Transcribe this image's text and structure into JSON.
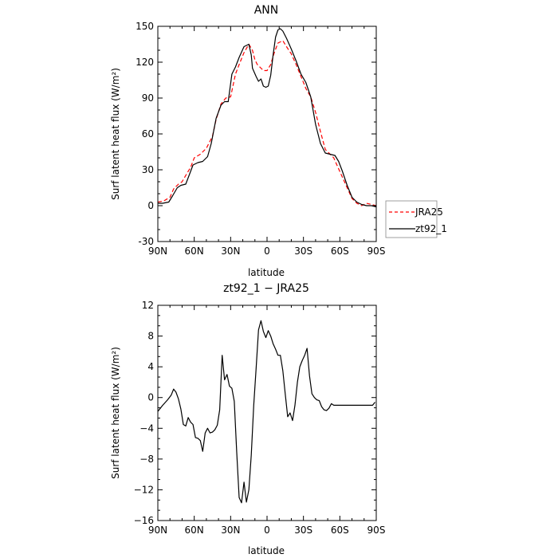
{
  "chart_data": [
    {
      "type": "line",
      "title": "ANN",
      "xlabel": "latitude",
      "ylabel": "Surf latent heat flux (W/m²)",
      "xlim": [
        90,
        -90
      ],
      "ylim": [
        -30,
        150
      ],
      "x_ticks": [
        90,
        60,
        30,
        0,
        -30,
        -60,
        -90
      ],
      "x_tick_labels": [
        "90N",
        "60N",
        "30N",
        "0",
        "30S",
        "60S",
        "90S"
      ],
      "y_ticks": [
        -30,
        0,
        30,
        60,
        90,
        120,
        150
      ],
      "y_tick_labels": [
        "-30",
        "0",
        "30",
        "60",
        "90",
        "120",
        "150"
      ],
      "grid": false,
      "legend_position": "outside-right",
      "series": [
        {
          "name": "JRA25",
          "color": "#ff0000",
          "dash": "dashed",
          "x": [
            90,
            85,
            80,
            77,
            73,
            70,
            66,
            63,
            60,
            55,
            50,
            45,
            42,
            38,
            34,
            30,
            26,
            23,
            19,
            15,
            12,
            10,
            8,
            5,
            3,
            0,
            -3,
            -6,
            -9,
            -13,
            -16,
            -20,
            -24,
            -28,
            -32,
            -36,
            -40,
            -44,
            -48,
            -52,
            -55,
            -58,
            -62,
            -66,
            -70,
            -74,
            -78,
            -82,
            -86,
            -90
          ],
          "y": [
            3,
            4,
            7,
            14,
            18,
            20,
            27,
            32,
            40,
            43,
            48,
            58,
            72,
            85,
            90,
            91,
            110,
            118,
            128,
            135,
            130,
            122,
            118,
            115,
            113,
            113,
            118,
            128,
            136,
            138,
            133,
            127,
            118,
            108,
            98,
            91,
            78,
            62,
            47,
            43,
            40,
            33,
            24,
            15,
            6,
            2,
            0,
            2,
            1,
            0
          ]
        },
        {
          "name": "zt92_1",
          "color": "#000000",
          "dash": "solid",
          "x": [
            90,
            86,
            81,
            78,
            74,
            71,
            67,
            64,
            61,
            57,
            53,
            49,
            46,
            42,
            38,
            35,
            32,
            29,
            26,
            23,
            19,
            15,
            13,
            12,
            9,
            7,
            5,
            3,
            1,
            -1,
            -3,
            -5,
            -7,
            -9,
            -11,
            -13,
            -16,
            -20,
            -24,
            -28,
            -32,
            -36,
            -40,
            -44,
            -48,
            -52,
            -56,
            -59,
            -62,
            -66,
            -70,
            -74,
            -78,
            -82,
            -86,
            -90
          ],
          "y": [
            2,
            2,
            3,
            8,
            15,
            17,
            18,
            26,
            34,
            36,
            37,
            41,
            52,
            73,
            84,
            87,
            87,
            110,
            116,
            124,
            133,
            135,
            126,
            115,
            108,
            104,
            106,
            100,
            99,
            100,
            109,
            126,
            141,
            147,
            148,
            146,
            140,
            131,
            121,
            110,
            103,
            91,
            68,
            52,
            44,
            43,
            42,
            37,
            29,
            17,
            7,
            3,
            1,
            0,
            0,
            -1
          ]
        }
      ]
    },
    {
      "type": "line",
      "title": "zt92_1 − JRA25",
      "xlabel": "latitude",
      "ylabel": "Surf latent heat flux (W/m²)",
      "xlim": [
        90,
        -90
      ],
      "ylim": [
        -16,
        12
      ],
      "x_ticks": [
        90,
        60,
        30,
        0,
        -30,
        -60,
        -90
      ],
      "x_tick_labels": [
        "90N",
        "60N",
        "30N",
        "0",
        "30S",
        "60S",
        "90S"
      ],
      "y_ticks": [
        -16,
        -12,
        -8,
        -4,
        0,
        4,
        8,
        12
      ],
      "y_tick_labels": [
        "−16",
        "−12",
        "−8",
        "−4",
        "0",
        "4",
        "8",
        "12"
      ],
      "grid": false,
      "series": [
        {
          "name": "",
          "color": "#000000",
          "dash": "solid",
          "x": [
            90,
            86,
            82,
            79,
            77,
            75,
            73,
            71,
            69,
            67,
            65,
            63,
            61,
            59,
            57,
            55,
            53,
            51,
            49,
            47,
            45,
            43,
            41,
            39,
            37,
            35,
            33,
            31,
            29,
            27,
            25,
            23,
            21,
            19,
            17,
            15,
            13,
            11,
            9,
            7,
            5,
            3,
            1,
            -1,
            -3,
            -5,
            -7,
            -9,
            -11,
            -13,
            -15,
            -17,
            -19,
            -21,
            -23,
            -25,
            -27,
            -29,
            -31,
            -33,
            -35,
            -37,
            -39,
            -41,
            -43,
            -45,
            -47,
            -49,
            -51,
            -53,
            -55,
            -57,
            -59,
            -61,
            -63,
            -65,
            -67,
            -69,
            -71,
            -73,
            -75,
            -77,
            -79,
            -81,
            -83,
            -85,
            -87,
            -89
          ],
          "y": [
            -1.8,
            -1,
            -0.3,
            0.3,
            1.1,
            0.7,
            -0.2,
            -1.5,
            -3.5,
            -3.7,
            -2.6,
            -3.2,
            -3.5,
            -5.2,
            -5.3,
            -5.6,
            -7,
            -4.6,
            -4,
            -4.6,
            -4.5,
            -4.2,
            -3.6,
            -1.6,
            5.5,
            2.3,
            3,
            1.5,
            1.2,
            -0.5,
            -7,
            -13,
            -13.7,
            -11,
            -13.6,
            -12,
            -7.5,
            -1,
            3.8,
            8.8,
            10,
            8.6,
            7.8,
            8.7,
            8,
            7,
            6.3,
            5.5,
            5.5,
            3.5,
            0.5,
            -2.5,
            -2,
            -3,
            -1,
            2,
            4,
            4.8,
            5.5,
            6.4,
            2.8,
            0.5,
            0,
            -0.3,
            -0.4,
            -1.2,
            -1.6,
            -1.7,
            -1.4,
            -0.8,
            -1,
            -1,
            -1,
            -1,
            -1,
            -1,
            -1,
            -1,
            -1,
            -1,
            -1,
            -1,
            -1,
            -1,
            -1,
            -1,
            -1,
            -0.6
          ]
        }
      ]
    }
  ]
}
